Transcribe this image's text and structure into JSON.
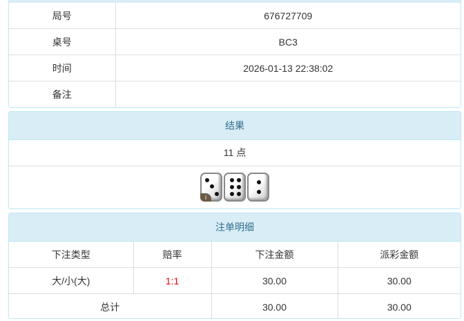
{
  "info": {
    "rows": [
      {
        "label": "局号",
        "value": "676727709"
      },
      {
        "label": "桌号",
        "value": "BC3"
      },
      {
        "label": "时间",
        "value": "2026-01-13 22:38:02"
      },
      {
        "label": "备注",
        "value": ""
      }
    ]
  },
  "result": {
    "title": "结果",
    "points": "11 点",
    "dice": [
      3,
      6,
      2
    ],
    "info_icon": "i"
  },
  "bets": {
    "title": "注单明细",
    "headers": [
      "下注类型",
      "赔率",
      "下注金额",
      "派彩金额"
    ],
    "rows": [
      {
        "type": "大/小(大)",
        "odds": "1:1",
        "amount": "30.00",
        "payout": "30.00"
      }
    ],
    "total": {
      "label": "总计",
      "amount": "30.00",
      "payout": "30.00"
    },
    "odds_color": "#ee0000"
  }
}
